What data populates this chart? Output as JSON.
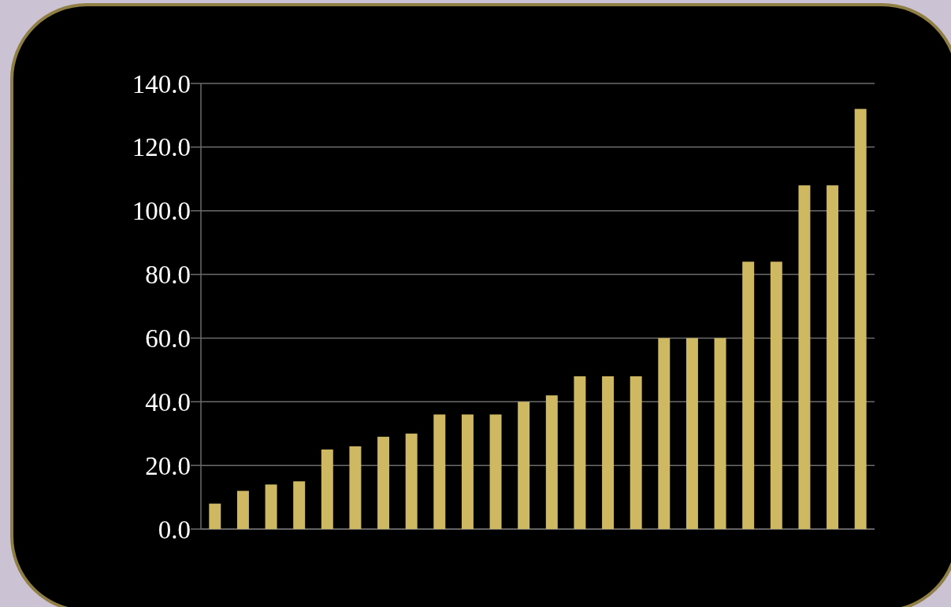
{
  "chart_data": {
    "type": "bar",
    "categories": [
      null,
      null,
      null,
      null,
      null,
      null,
      null,
      null,
      null,
      null,
      null,
      null,
      null,
      null,
      null,
      null,
      null,
      null,
      null,
      null,
      null,
      null,
      null,
      null
    ],
    "values": [
      8,
      12,
      14,
      15,
      25,
      26,
      29,
      30,
      36,
      36,
      36,
      40,
      42,
      48,
      48,
      48,
      60,
      60,
      60,
      84,
      84,
      108,
      108,
      132
    ],
    "color": "#cfb862",
    "ylim": [
      0,
      140
    ],
    "yticks": [
      {
        "value": 0,
        "label": "0.0"
      },
      {
        "value": 20,
        "label": "20.0"
      },
      {
        "value": 40,
        "label": "40.0"
      },
      {
        "value": 60,
        "label": "60.0"
      },
      {
        "value": 80,
        "label": "80.0"
      },
      {
        "value": 100,
        "label": "100.0"
      },
      {
        "value": 120,
        "label": "120.0"
      },
      {
        "value": 140,
        "label": "140.0"
      }
    ],
    "grid": true
  }
}
